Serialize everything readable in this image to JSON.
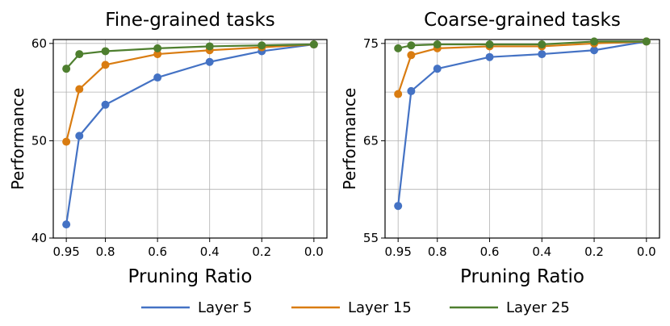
{
  "chart_data": [
    {
      "type": "line",
      "title": "Fine-grained tasks",
      "xlabel": "Pruning Ratio",
      "ylabel": "Performance",
      "x_ticks": [
        "0.95",
        "0.8",
        "0.6",
        "0.4",
        "0.2",
        "0.0"
      ],
      "x_tick_values": [
        0.95,
        0.8,
        0.6,
        0.4,
        0.2,
        0.0
      ],
      "x": [
        0.95,
        0.9,
        0.8,
        0.6,
        0.4,
        0.2,
        0.0
      ],
      "xlim": [
        1.0,
        -0.05
      ],
      "ylim": [
        40,
        60.4
      ],
      "y_ticks": [
        40,
        50,
        60
      ],
      "y_ticks_labels": [
        "40",
        "50",
        "60"
      ],
      "grid": true,
      "series": [
        {
          "name": "Layer 5",
          "values": [
            41.4,
            50.5,
            53.7,
            56.5,
            58.1,
            59.2,
            59.9
          ]
        },
        {
          "name": "Layer 15",
          "values": [
            49.9,
            55.3,
            57.8,
            58.9,
            59.3,
            59.6,
            59.9
          ]
        },
        {
          "name": "Layer 25",
          "values": [
            57.4,
            58.9,
            59.2,
            59.5,
            59.7,
            59.8,
            59.9
          ]
        }
      ]
    },
    {
      "type": "line",
      "title": "Coarse-grained tasks",
      "xlabel": "Pruning Ratio",
      "ylabel": "Performance",
      "x_ticks": [
        "0.95",
        "0.8",
        "0.6",
        "0.4",
        "0.2",
        "0.0"
      ],
      "x_tick_values": [
        0.95,
        0.8,
        0.6,
        0.4,
        0.2,
        0.0
      ],
      "x": [
        0.95,
        0.9,
        0.8,
        0.6,
        0.4,
        0.2,
        0.0
      ],
      "xlim": [
        1.0,
        -0.05
      ],
      "ylim": [
        55,
        75.4
      ],
      "y_ticks": [
        55,
        65,
        75
      ],
      "y_ticks_labels": [
        "55",
        "65",
        "75"
      ],
      "grid": true,
      "series": [
        {
          "name": "Layer 5",
          "values": [
            58.3,
            70.1,
            72.4,
            73.6,
            73.9,
            74.3,
            75.2
          ]
        },
        {
          "name": "Layer 15",
          "values": [
            69.8,
            73.8,
            74.5,
            74.7,
            74.7,
            75.0,
            75.2
          ]
        },
        {
          "name": "Layer 25",
          "values": [
            74.5,
            74.8,
            74.9,
            74.9,
            74.9,
            75.2,
            75.2
          ]
        }
      ]
    }
  ],
  "legend": {
    "position": "bottom",
    "items": [
      {
        "label": "Layer 5",
        "color": "#4472C4"
      },
      {
        "label": "Layer 15",
        "color": "#D97C11"
      },
      {
        "label": "Layer 25",
        "color": "#4E7F2F"
      }
    ]
  }
}
